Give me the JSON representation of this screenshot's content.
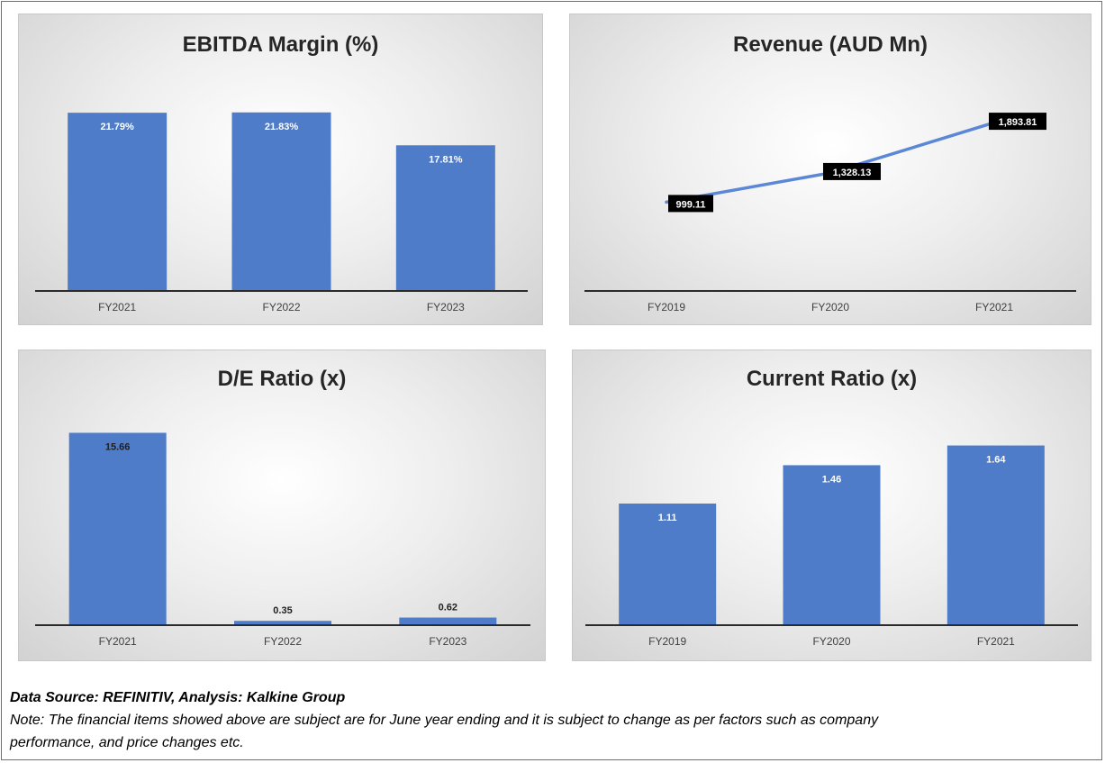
{
  "chart_data": [
    {
      "id": "ebitda",
      "type": "bar",
      "title": "EBITDA Margin (%)",
      "categories": [
        "FY2021",
        "FY2022",
        "FY2023"
      ],
      "values": [
        21.79,
        21.83,
        17.81
      ],
      "labels": [
        "21.79%",
        "21.83%",
        "17.81%"
      ],
      "ylim": [
        0,
        25
      ],
      "label_style": "inside-white",
      "bar_color": "#4f7cc8"
    },
    {
      "id": "revenue",
      "type": "line",
      "title": "Revenue (AUD Mn)",
      "categories": [
        "FY2019",
        "FY2020",
        "FY2021"
      ],
      "values": [
        999.11,
        1328.13,
        1893.81
      ],
      "labels": [
        "999.11",
        "1,328.13",
        "1,893.81"
      ],
      "ylim": [
        0,
        2300
      ],
      "label_style": "black-box",
      "line_color": "#5b88d6"
    },
    {
      "id": "de_ratio",
      "type": "bar",
      "title": "D/E Ratio (x)",
      "categories": [
        "FY2021",
        "FY2022",
        "FY2023"
      ],
      "values": [
        15.66,
        0.35,
        0.62
      ],
      "labels": [
        "15.66",
        "0.35",
        "0.62"
      ],
      "ylim": [
        0,
        16.5
      ],
      "label_style": "dark",
      "bar_color": "#4f7cc8"
    },
    {
      "id": "current_ratio",
      "type": "bar",
      "title": "Current Ratio (x)",
      "categories": [
        "FY2019",
        "FY2020",
        "FY2021"
      ],
      "values": [
        1.11,
        1.46,
        1.64
      ],
      "labels": [
        "1.11",
        "1.46",
        "1.64"
      ],
      "ylim": [
        0,
        1.85
      ],
      "label_style": "inside-white",
      "bar_color": "#4f7cc8"
    }
  ],
  "footer": {
    "source": "Data Source: REFINITIV, Analysis: Kalkine Group",
    "note_line1": "Note: The financial items showed above are subject are for June year ending and it is subject to change as per factors such as company",
    "note_line2": "performance, and price changes etc."
  }
}
